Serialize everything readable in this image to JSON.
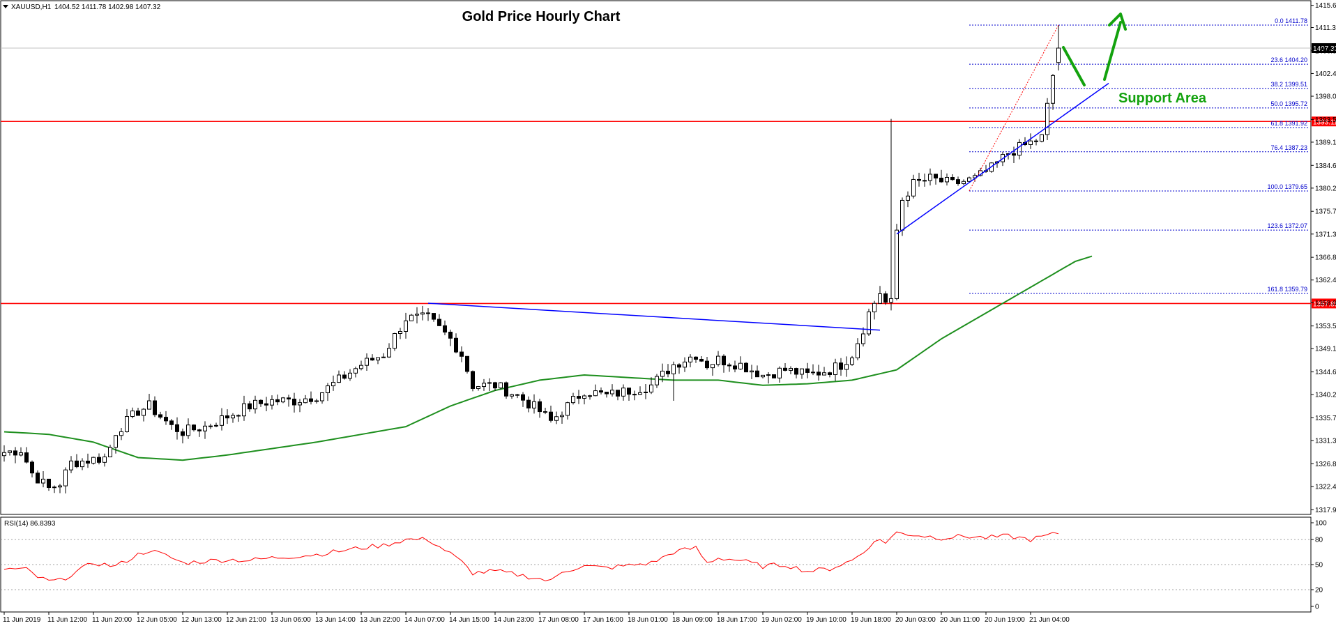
{
  "window": {
    "symbol_label": "XAUUSD,H1",
    "ohlc_readout": "1404.52 1411.78 1402.98 1407.32"
  },
  "chart_data": {
    "type": "candlestick",
    "title": "Gold Price Hourly Chart",
    "symbol": "XAUUSD",
    "timeframe": "H1",
    "open": 1404.52,
    "high": 1411.78,
    "low": 1402.98,
    "close": 1407.32,
    "y_range": [
      1317.0,
      1416.5
    ],
    "price_ticks": [
      "1415.60",
      "1411.30",
      "1406.80",
      "1402.40",
      "1398.00",
      "1393.50",
      "1389.10",
      "1384.60",
      "1380.20",
      "1375.70",
      "1371.30",
      "1366.80",
      "1362.40",
      "1358.00",
      "1353.50",
      "1349.10",
      "1344.60",
      "1340.20",
      "1335.70",
      "1331.30",
      "1326.80",
      "1322.40",
      "1317.90"
    ],
    "price_tick_values": [
      1415.6,
      1411.3,
      1406.8,
      1402.4,
      1398.0,
      1393.5,
      1389.1,
      1384.6,
      1380.2,
      1375.7,
      1371.3,
      1366.8,
      1362.4,
      1358.0,
      1353.5,
      1349.1,
      1344.6,
      1340.2,
      1335.7,
      1331.3,
      1326.8,
      1322.4,
      1317.9
    ],
    "time_labels": [
      "11 Jun 2019",
      "11 Jun 12:00",
      "11 Jun 20:00",
      "12 Jun 05:00",
      "12 Jun 13:00",
      "12 Jun 21:00",
      "13 Jun 06:00",
      "13 Jun 14:00",
      "13 Jun 22:00",
      "14 Jun 07:00",
      "14 Jun 15:00",
      "14 Jun 23:00",
      "17 Jun 08:00",
      "17 Jun 16:00",
      "18 Jun 01:00",
      "18 Jun 09:00",
      "18 Jun 17:00",
      "19 Jun 02:00",
      "19 Jun 10:00",
      "19 Jun 18:00",
      "20 Jun 03:00",
      "20 Jun 11:00",
      "20 Jun 19:00",
      "21 Jun 04:00"
    ],
    "time_label_bars": [
      0,
      8,
      16,
      24,
      32,
      40,
      48,
      56,
      64,
      72,
      80,
      88,
      96,
      104,
      112,
      120,
      128,
      136,
      144,
      152,
      160,
      168,
      176,
      184
    ],
    "current_price_label": "1407.32",
    "horizontal_levels": [
      {
        "value": 1393.11,
        "label": "1393.11",
        "color": "#ff0000"
      },
      {
        "value": 1357.85,
        "label": "1357.85",
        "color": "#ff0000"
      }
    ],
    "fibonacci": {
      "color": "#0000cc",
      "levels": [
        {
          "value": 1411.78,
          "label": "0.0 1411.78"
        },
        {
          "value": 1404.2,
          "label": "23.6 1404.20"
        },
        {
          "value": 1399.51,
          "label": "38.2 1399.51"
        },
        {
          "value": 1395.72,
          "label": "50.0 1395.72"
        },
        {
          "value": 1391.92,
          "label": "61.8 1391.92"
        },
        {
          "value": 1387.23,
          "label": "76.4 1387.23"
        },
        {
          "value": 1379.65,
          "label": "100.0 1379.65"
        },
        {
          "value": 1372.07,
          "label": "123.6 1372.07"
        },
        {
          "value": 1359.79,
          "label": "161.8 1359.79"
        }
      ]
    },
    "annotations": {
      "support_label": "Support Area",
      "support_color": "#13a20e",
      "trendline_color": "#0000ff",
      "ma_color": "#1e8f1e",
      "rsi_color": "#ff0000"
    },
    "rsi": {
      "label": "RSI(14) 86.8393",
      "period": 14,
      "last_value": 86.8393,
      "y_range": [
        0,
        100
      ],
      "ticks": [
        "100",
        "80",
        "50",
        "20",
        "0"
      ],
      "tick_values": [
        100,
        80,
        50,
        20,
        0
      ],
      "levels": [
        80,
        50,
        20
      ]
    }
  }
}
